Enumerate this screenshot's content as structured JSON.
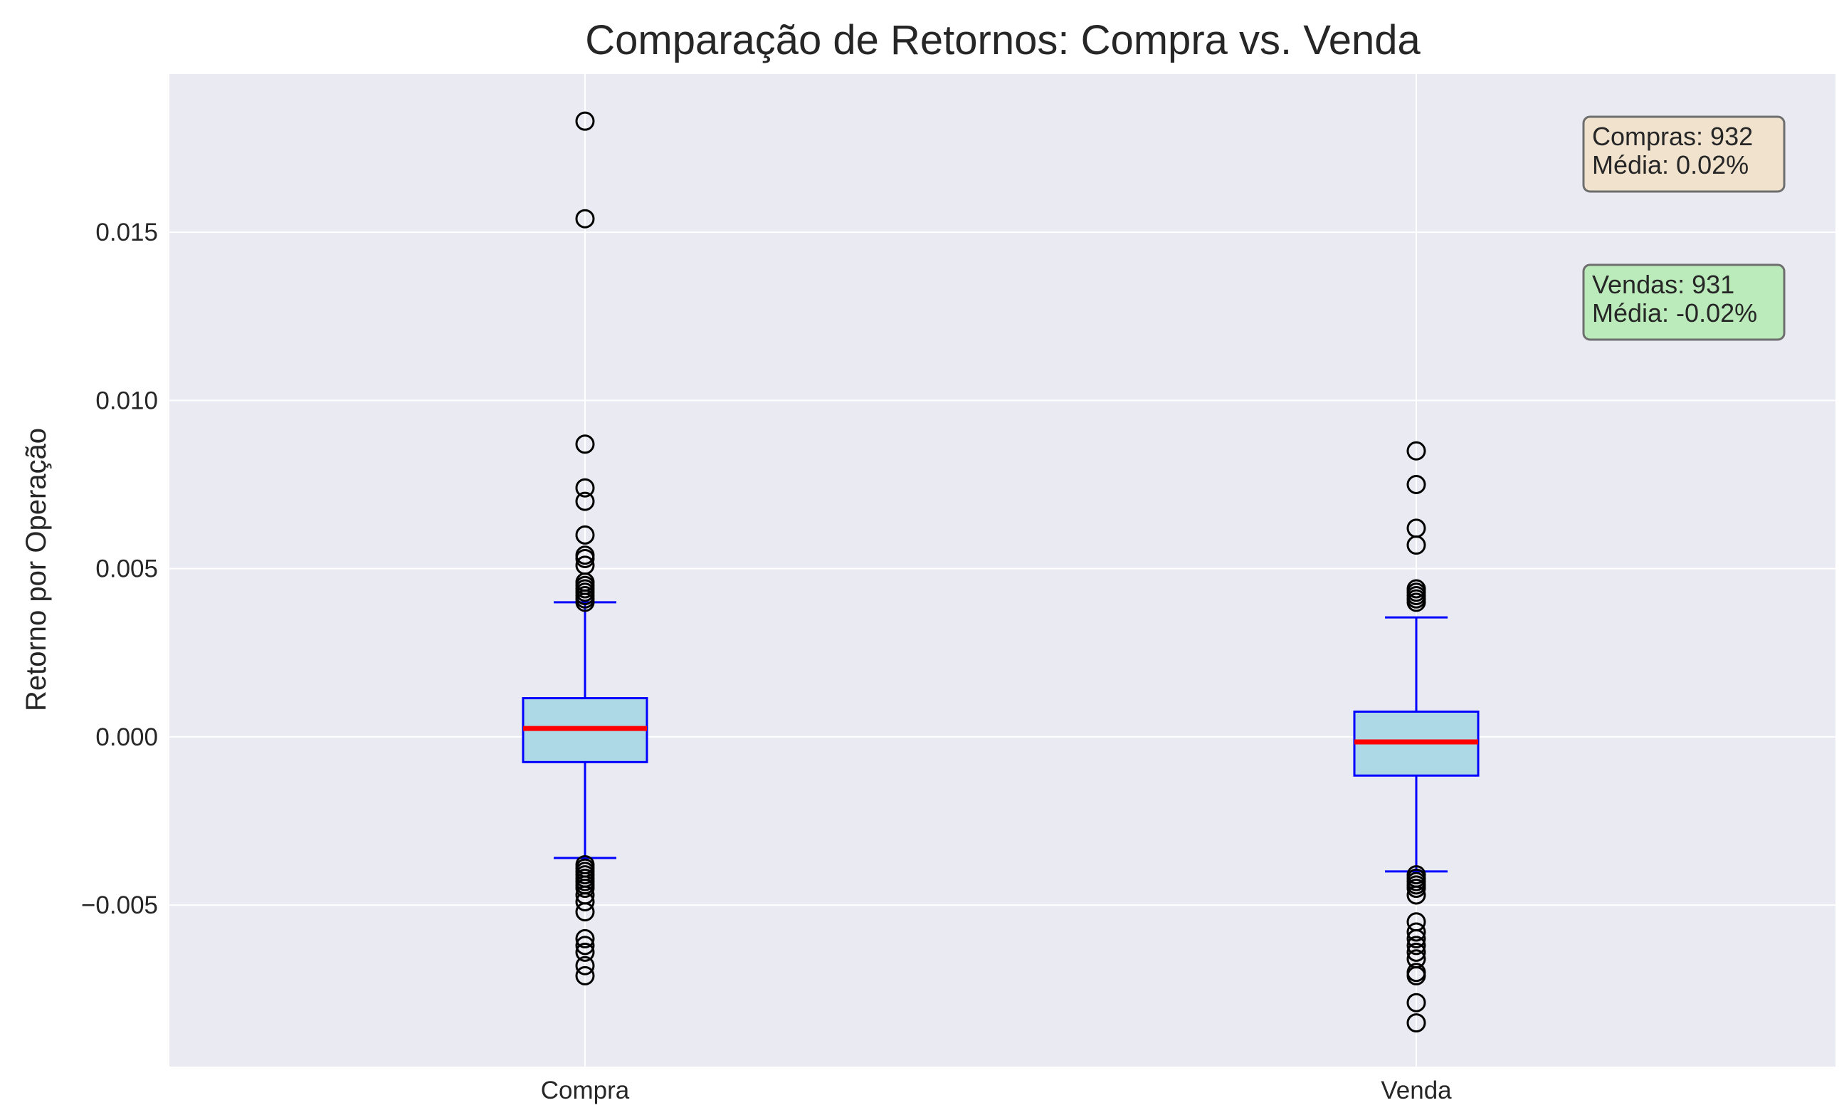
{
  "chart_data": {
    "type": "box",
    "title": "Comparação de Retornos: Compra vs. Venda",
    "xlabel": "",
    "ylabel": "Retorno por Operação",
    "ylim": [
      -0.0098,
      0.0197
    ],
    "yticks": [
      -0.005,
      0.0,
      0.005,
      0.01,
      0.015
    ],
    "ytick_labels": [
      "−0.005",
      "0.000",
      "0.005",
      "0.010",
      "0.015"
    ],
    "grid": true,
    "categories": [
      "Compra",
      "Venda"
    ],
    "boxes": [
      {
        "name": "Compra",
        "whisker_low": -0.0036,
        "q1": -0.00075,
        "median": 0.00025,
        "q3": 0.00115,
        "whisker_high": 0.004,
        "outliers": [
          0.0183,
          0.0154,
          0.0087,
          0.0074,
          0.007,
          0.006,
          0.0054,
          0.0053,
          0.0051,
          0.0046,
          0.0045,
          0.0044,
          0.0043,
          0.0042,
          0.0041,
          0.004,
          -0.0038,
          -0.0039,
          -0.004,
          -0.0041,
          -0.0042,
          -0.0043,
          -0.0044,
          -0.0045,
          -0.0047,
          -0.0049,
          -0.0052,
          -0.006,
          -0.0062,
          -0.0064,
          -0.0068,
          -0.0071
        ]
      },
      {
        "name": "Venda",
        "whisker_low": -0.004,
        "q1": -0.00115,
        "median": -0.00015,
        "q3": 0.00075,
        "whisker_high": 0.00355,
        "outliers": [
          0.0085,
          0.0075,
          0.0062,
          0.0057,
          0.0044,
          0.0043,
          0.0042,
          0.0041,
          0.004,
          -0.0041,
          -0.0042,
          -0.0043,
          -0.0044,
          -0.0045,
          -0.0047,
          -0.0055,
          -0.0058,
          -0.006,
          -0.0062,
          -0.0064,
          -0.0066,
          -0.007,
          -0.0071,
          -0.0079,
          -0.0085
        ]
      }
    ],
    "annotations": [
      {
        "lines": [
          "Compras: 932",
          "Média: 0.02%"
        ],
        "color": "#f0e2cd"
      },
      {
        "lines": [
          "Vendas: 931",
          "Média: -0.02%"
        ],
        "color": "#bbeabb"
      }
    ],
    "colors": {
      "plot_background": "#eaeaf2",
      "grid": "#ffffff",
      "box_fill": "#add8e6",
      "box_edge": "#0000ff",
      "median": "#ff0000",
      "outlier_edge": "#000000"
    }
  }
}
